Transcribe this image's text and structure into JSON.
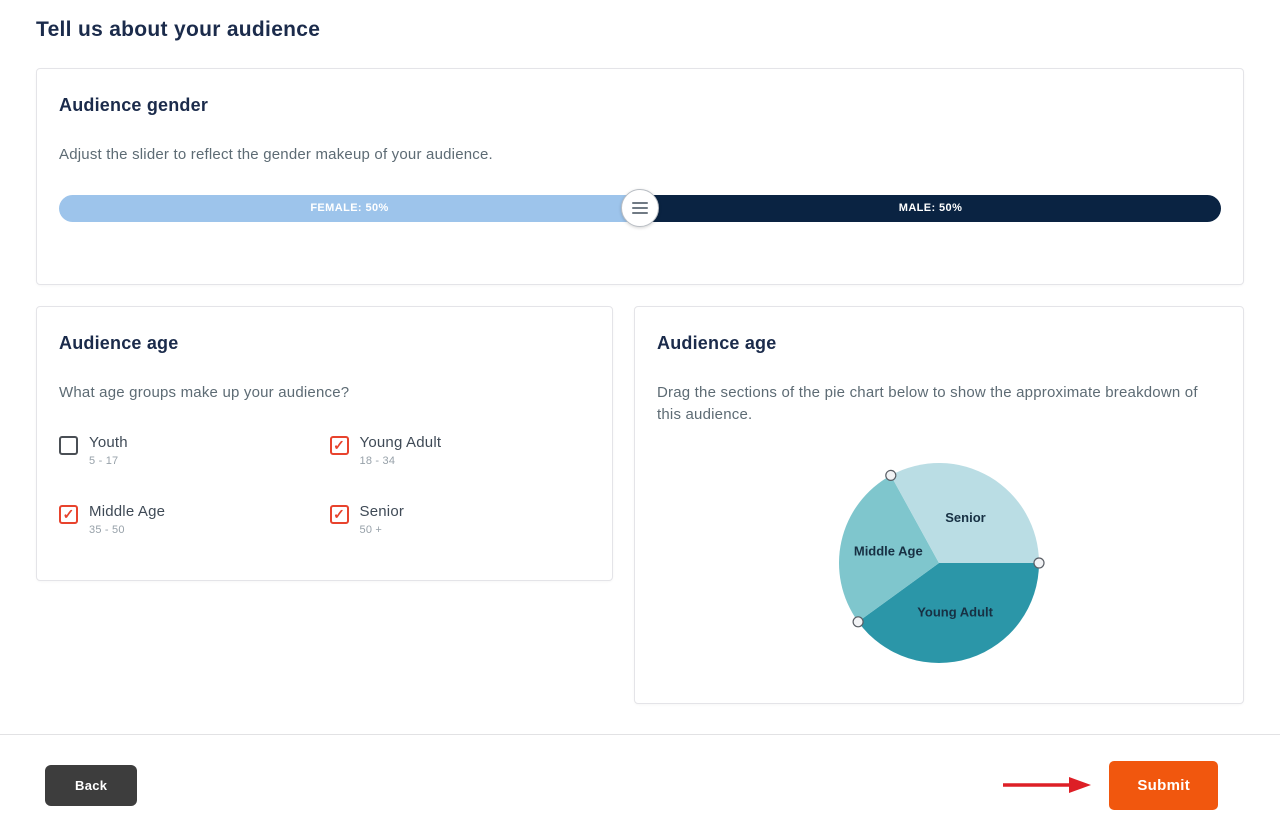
{
  "page": {
    "title": "Tell us about your audience"
  },
  "gender_card": {
    "title": "Audience gender",
    "description": "Adjust the slider to reflect the gender makeup of your audience.",
    "slider": {
      "female_label": "FEMALE: 50%",
      "male_label": "MALE: 50%",
      "female_percent": 50,
      "male_percent": 50,
      "female_color": "#9dc4eb",
      "male_color": "#0a2342"
    }
  },
  "age_card": {
    "title": "Audience age",
    "question": "What age groups make up your audience?",
    "checked_color": "#e8432d",
    "options": [
      {
        "label": "Youth",
        "range": "5 - 17",
        "checked": false
      },
      {
        "label": "Young Adult",
        "range": "18 - 34",
        "checked": true
      },
      {
        "label": "Middle Age",
        "range": "35 - 50",
        "checked": true
      },
      {
        "label": "Senior",
        "range": "50 +",
        "checked": true
      }
    ]
  },
  "pie_card": {
    "title": "Audience age",
    "description": "Drag the sections of the pie chart below to show the approximate breakdown of this audience."
  },
  "chart_data": {
    "type": "pie",
    "labels": [
      "Young Adult",
      "Middle Age",
      "Senior"
    ],
    "values": [
      40,
      27,
      33
    ],
    "colors": [
      "#2b96a8",
      "#7fc6cd",
      "#badde4"
    ],
    "start_angle_deg": 0,
    "direction": "clockwise",
    "label_color": "#173043",
    "legend_position": "none"
  },
  "footer": {
    "back_label": "Back",
    "back_color": "#3d3d3d",
    "submit_label": "Submit",
    "submit_color": "#f1570e",
    "arrow_color": "#dd1f26"
  }
}
